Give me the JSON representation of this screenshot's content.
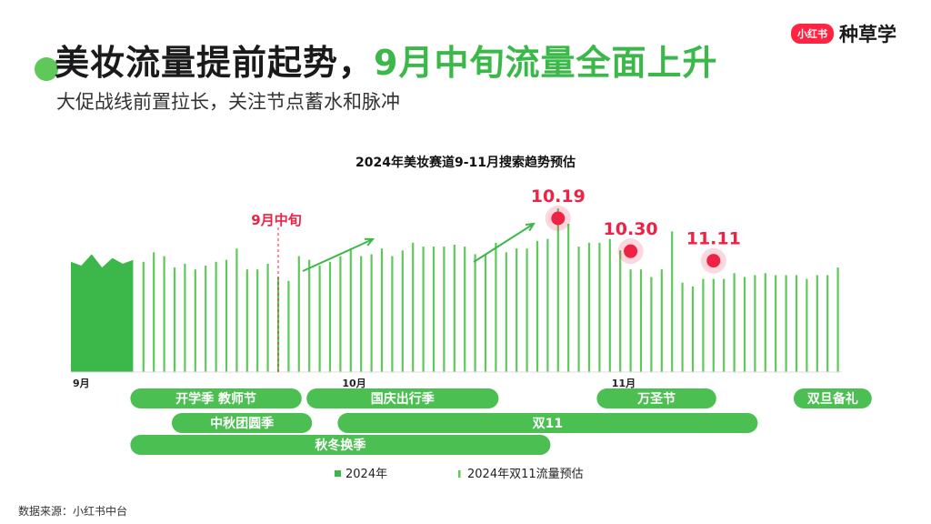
{
  "header": {
    "title_part1": "美妆流量提前起势，",
    "title_part2": "9月中旬流量全面上升",
    "subtitle": "大促战线前置拉长，关注节点蓄水和脉冲",
    "brand_badge": "小红书",
    "brand_text": "种草学"
  },
  "footer": {
    "source": "数据来源：小红书中台"
  },
  "colors": {
    "solid": "#3cb84a",
    "forecast": "#5ec95a",
    "accent": "#ee2244",
    "band": "#4cbf52"
  },
  "chart_data": {
    "type": "bar",
    "title": "2024年美妆赛道9-11月搜索趋势预估",
    "ylim": [
      0,
      100
    ],
    "x_ticks": [
      {
        "label": "9月",
        "index": 0
      },
      {
        "label": "10月",
        "index": 26
      },
      {
        "label": "11月",
        "index": 52
      }
    ],
    "series": [
      {
        "name": "2024年",
        "style": "area",
        "values": [
          58,
          56,
          62,
          55,
          60,
          57,
          59
        ]
      },
      {
        "name": "2024年双11流量预估",
        "style": "bar",
        "start_index": 7,
        "values": [
          58,
          63,
          61,
          55,
          57,
          54,
          56,
          58,
          59,
          65,
          54,
          54,
          57,
          50,
          48,
          61,
          59,
          56,
          58,
          61,
          65,
          61,
          62,
          65,
          61,
          64,
          68,
          66,
          66,
          66,
          67,
          66,
          62,
          62,
          68,
          63,
          65,
          65,
          69,
          70,
          86,
          78,
          66,
          68,
          68,
          70,
          64,
          54,
          54,
          50,
          54,
          74,
          47,
          45,
          49,
          49,
          49,
          52,
          50,
          51,
          52,
          51,
          51,
          51,
          49,
          51,
          51,
          55
        ]
      }
    ],
    "annotations": [
      {
        "label": "9月中旬",
        "index": 20,
        "type": "vline"
      },
      {
        "label": "10.19",
        "index": 47,
        "type": "peak"
      },
      {
        "label": "10.30",
        "index": 54,
        "type": "peak"
      },
      {
        "label": "11.11",
        "index": 62,
        "type": "peak"
      }
    ],
    "periods": [
      {
        "label": "开学季 教师节",
        "start": 6,
        "end": 22,
        "row": 0
      },
      {
        "label": "国庆出行季",
        "start": 23,
        "end": 41,
        "row": 0
      },
      {
        "label": "万圣节",
        "start": 51,
        "end": 62,
        "row": 0
      },
      {
        "label": "双旦备礼",
        "start": 70,
        "end": 77,
        "row": 0
      },
      {
        "label": "中秋团圆季",
        "start": 10,
        "end": 23,
        "row": 1
      },
      {
        "label": "双11",
        "start": 26,
        "end": 66,
        "row": 1
      },
      {
        "label": "秋冬换季",
        "start": 6,
        "end": 46,
        "row": 2
      }
    ],
    "legend": {
      "position": "bottom"
    }
  }
}
